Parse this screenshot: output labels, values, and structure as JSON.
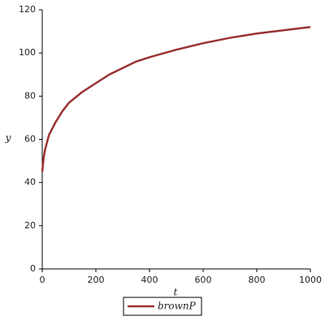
{
  "chart_data": {
    "type": "line",
    "xlabel": "t",
    "ylabel": "y",
    "x": [
      0,
      5,
      10,
      25,
      50,
      75,
      100,
      150,
      200,
      250,
      300,
      350,
      400,
      500,
      600,
      700,
      800,
      900,
      1000
    ],
    "series": [
      {
        "name": "brownP",
        "color": "#993333",
        "values": [
          45,
          51,
          55,
          62,
          68,
          73,
          77,
          82,
          86,
          90,
          93,
          96,
          98,
          101.5,
          104.5,
          107,
          109,
          110.5,
          112
        ]
      }
    ],
    "xlim": [
      0,
      1000
    ],
    "ylim": [
      0,
      120
    ],
    "xticks": [
      0,
      200,
      400,
      600,
      800,
      1000
    ],
    "yticks": [
      0,
      20,
      40,
      60,
      80,
      100,
      120
    ],
    "grid": false
  }
}
